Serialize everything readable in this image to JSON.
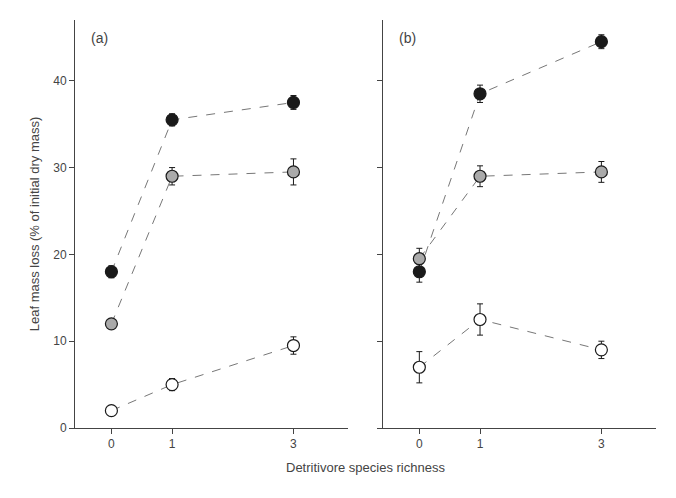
{
  "chart_data": [
    {
      "type": "scatter",
      "annotations": [
        "(a)"
      ],
      "xlabel": "Detritivore species richness",
      "ylabel": "Leaf mass loss (% of initial dry mass)",
      "x": [
        0,
        1,
        3
      ],
      "series": [
        {
          "color": "#1a1a1a",
          "values": [
            18.0,
            35.5,
            37.5
          ],
          "yerr": [
            0.7,
            0.7,
            0.8
          ]
        },
        {
          "color": "#aaaaaa",
          "values": [
            12.0,
            29.0,
            29.5
          ],
          "yerr": [
            0.5,
            1.0,
            1.5
          ]
        },
        {
          "color": "#ffffff",
          "values": [
            2.0,
            5.0,
            9.5
          ],
          "yerr": [
            0.3,
            0.7,
            1.0
          ]
        }
      ],
      "xlim": [
        -0.6,
        3.9
      ],
      "xticks": [
        0,
        1,
        3
      ],
      "ylim": [
        0,
        47
      ],
      "yticks": [
        0,
        10,
        20,
        30,
        40
      ],
      "grid": false,
      "marker": "circle",
      "line_style": "dash"
    },
    {
      "type": "scatter",
      "annotations": [
        "(b)"
      ],
      "x": [
        0,
        1,
        3
      ],
      "series": [
        {
          "color": "#1a1a1a",
          "values": [
            18.0,
            38.5,
            44.5
          ],
          "yerr": [
            1.2,
            1.0,
            0.8
          ]
        },
        {
          "color": "#aaaaaa",
          "values": [
            19.5,
            29.0,
            29.5
          ],
          "yerr": [
            1.2,
            1.2,
            1.2
          ]
        },
        {
          "color": "#ffffff",
          "values": [
            7.0,
            12.5,
            9.0
          ],
          "yerr": [
            1.8,
            1.8,
            1.0
          ]
        }
      ],
      "xlim": [
        -0.6,
        3.9
      ],
      "xticks": [
        0,
        1,
        3
      ],
      "ylim": [
        0,
        47
      ],
      "yticks": [
        0,
        10,
        20,
        30,
        40
      ],
      "grid": false,
      "marker": "circle",
      "line_style": "dash",
      "tick_labels": "x"
    }
  ]
}
